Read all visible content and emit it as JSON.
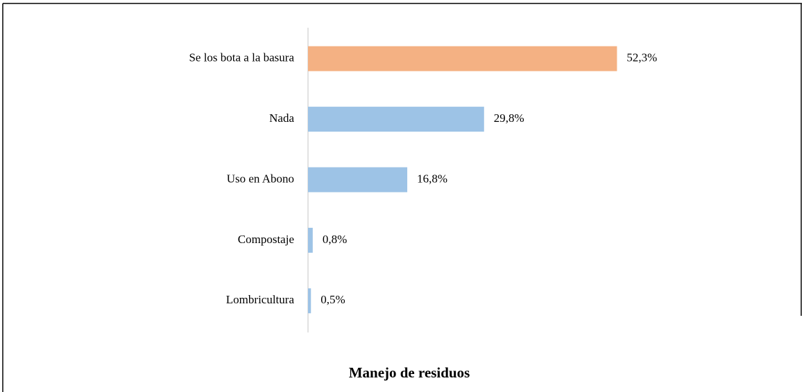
{
  "chart_data": {
    "type": "barh",
    "title": "Manejo de residuos",
    "categories": [
      "Se los bota a la basura",
      "Nada",
      "Uso en Abono",
      "Compostaje",
      "Lombricultura"
    ],
    "values": [
      52.3,
      29.8,
      16.8,
      0.8,
      0.5
    ],
    "value_labels": [
      "52,3%",
      "29,8%",
      "16,8%",
      "0,8%",
      "0,5%"
    ],
    "colors": [
      "#f4b183",
      "#9dc3e6",
      "#9dc3e6",
      "#9dc3e6",
      "#9dc3e6"
    ],
    "xlim": [
      0,
      60
    ]
  }
}
